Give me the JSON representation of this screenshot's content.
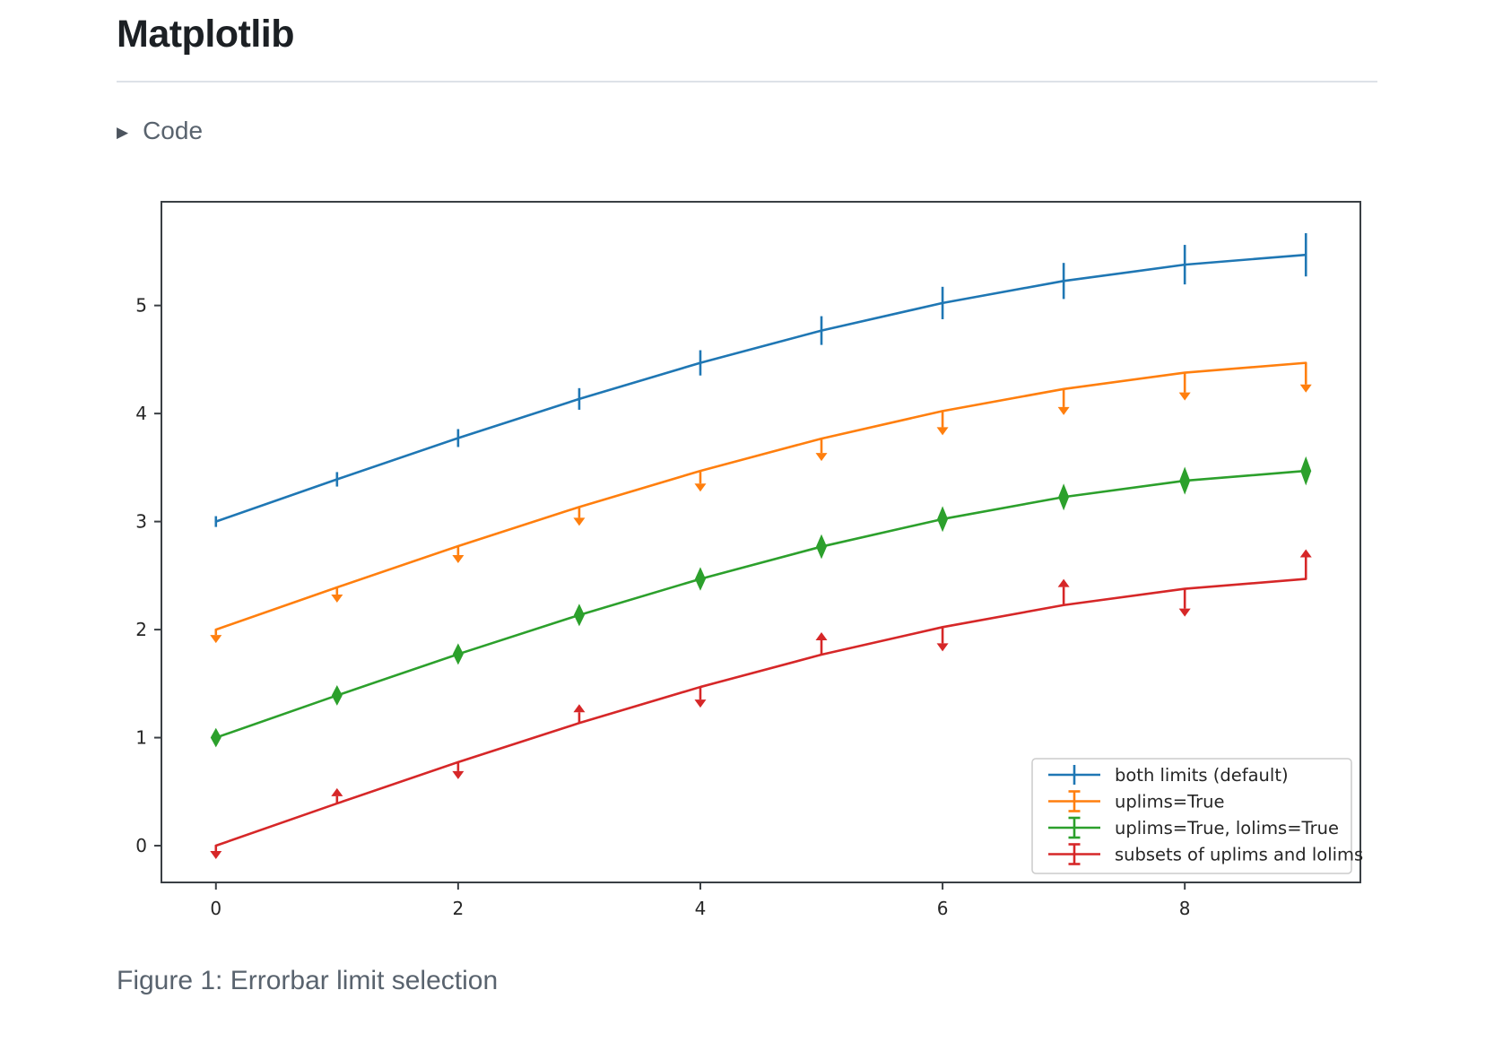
{
  "page": {
    "title": "Matplotlib",
    "code_toggle": {
      "label": "Code",
      "icon": "triangle-right"
    },
    "caption": "Figure 1: Errorbar limit selection"
  },
  "chart_data": {
    "type": "line",
    "title": "",
    "xlabel": "",
    "ylabel": "",
    "grid": false,
    "legend_position": "lower right",
    "xlim": [
      -0.45,
      9.45
    ],
    "ylim": [
      -0.34,
      5.96
    ],
    "x_ticks": [
      0,
      2,
      4,
      6,
      8
    ],
    "y_ticks": [
      0,
      1,
      2,
      3,
      4,
      5
    ],
    "x": [
      0,
      1,
      2,
      3,
      4,
      5,
      6,
      7,
      8,
      9
    ],
    "yerr": [
      0.05,
      0.067,
      0.083,
      0.1,
      0.117,
      0.133,
      0.15,
      0.167,
      0.183,
      0.2
    ],
    "series": [
      {
        "name": "both limits (default)",
        "color": "#1f77b4",
        "limits": "none",
        "values": [
          3.0,
          3.391,
          3.773,
          4.135,
          4.469,
          4.768,
          5.023,
          5.227,
          5.378,
          5.469
        ]
      },
      {
        "name": "uplims=True",
        "color": "#ff7f0e",
        "limits": "uplims",
        "values": [
          2.0,
          2.391,
          2.773,
          3.135,
          3.469,
          3.768,
          4.023,
          4.227,
          4.378,
          4.469
        ]
      },
      {
        "name": "uplims=True, lolims=True",
        "color": "#2ca02c",
        "limits": "uplims+lolims",
        "values": [
          1.0,
          1.391,
          1.773,
          2.135,
          2.469,
          2.768,
          3.023,
          3.227,
          3.378,
          3.469
        ]
      },
      {
        "name": "subsets of uplims and lolims",
        "color": "#d62728",
        "limits": [
          "uplims",
          "lolims",
          "uplims",
          "lolims",
          "uplims",
          "lolims",
          "uplims",
          "lolims",
          "uplims",
          "lolims"
        ],
        "values": [
          0.0,
          0.391,
          0.773,
          1.135,
          1.469,
          1.768,
          2.023,
          2.227,
          2.378,
          2.469
        ]
      }
    ],
    "axis_color": "#3a3f44",
    "tick_label_color": "#262626",
    "legend_border_color": "#cccccc"
  }
}
